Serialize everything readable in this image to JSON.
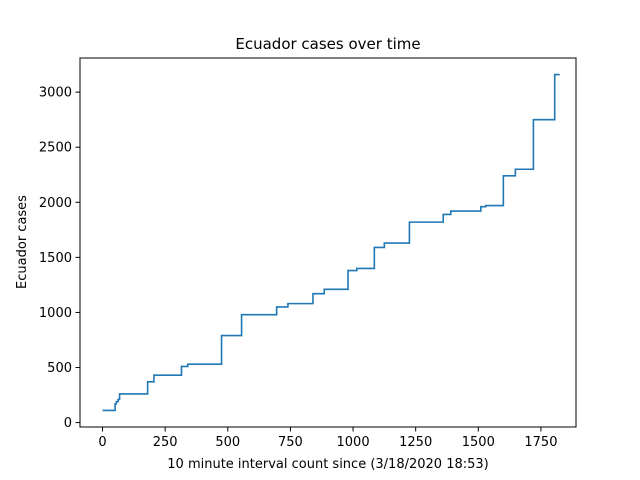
{
  "chart_data": {
    "type": "line",
    "title": "Ecuador cases over time",
    "xlabel": "10 minute interval count since (3/18/2020 18:53)",
    "ylabel": "Ecuador cases",
    "xlim": [
      -90,
      1890
    ],
    "ylim": [
      -40,
      3310
    ],
    "xticks": [
      0,
      250,
      500,
      750,
      1000,
      1250,
      1500,
      1750
    ],
    "yticks": [
      0,
      500,
      1000,
      1500,
      2000,
      2500,
      3000
    ],
    "grid": false,
    "line_color": "#1f77b4",
    "drawstyle": "steps-post",
    "series": [
      {
        "x": [
          0,
          50,
          55,
          62,
          68,
          180,
          205,
          315,
          340,
          475,
          555,
          695,
          740,
          840,
          885,
          980,
          1015,
          1085,
          1125,
          1225,
          1360,
          1390,
          1510,
          1530,
          1600,
          1648,
          1720,
          1805,
          1825
        ],
        "y": [
          110,
          170,
          190,
          210,
          260,
          370,
          430,
          510,
          530,
          790,
          980,
          1050,
          1080,
          1170,
          1210,
          1380,
          1400,
          1590,
          1630,
          1820,
          1890,
          1920,
          1960,
          1970,
          2240,
          2300,
          2750,
          3160,
          3160
        ]
      }
    ]
  }
}
